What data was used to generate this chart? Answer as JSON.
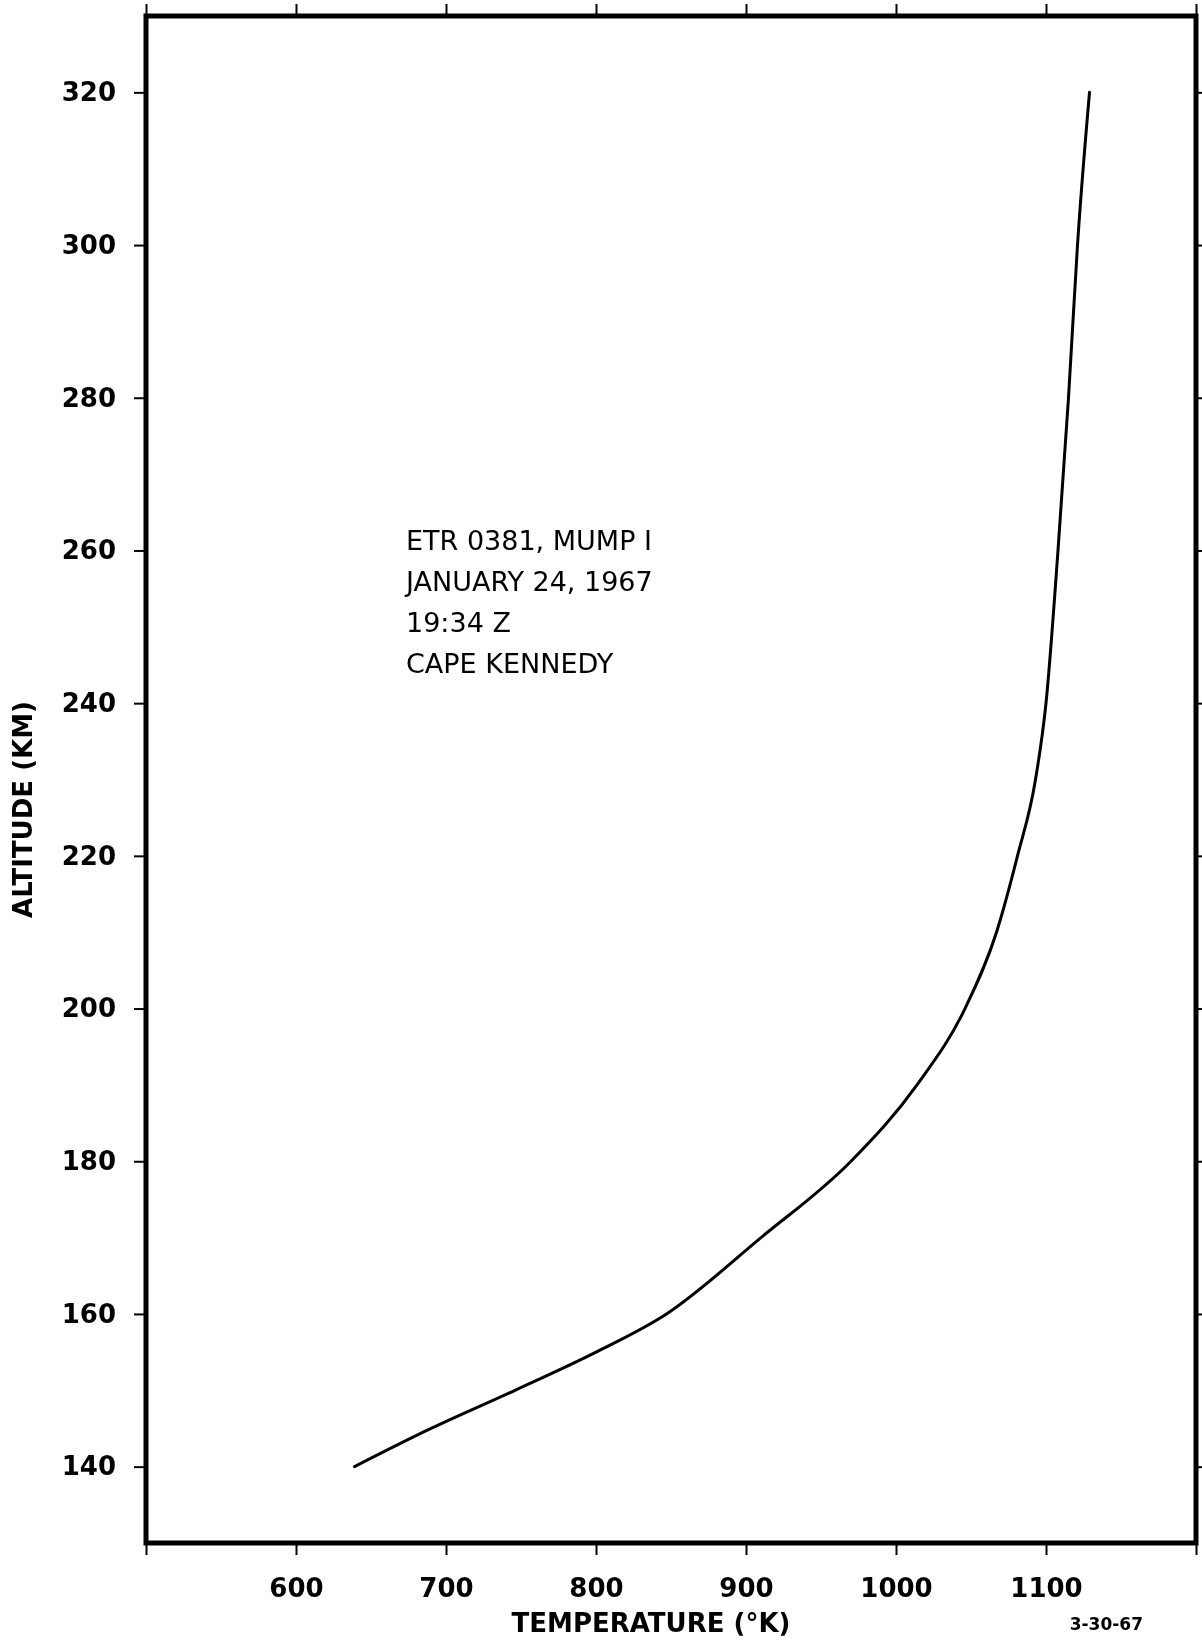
{
  "chart_data": {
    "type": "line",
    "xlabel": "TEMPERATURE (°K)",
    "ylabel": "ALTITUDE (KM)",
    "annotations": [
      "ETR 0381, MUMP I",
      "JANUARY 24, 1967",
      "19:34 Z",
      "CAPE KENNEDY",
      "3-30-67"
    ],
    "xlim": [
      500,
      1200
    ],
    "xticks": [
      {
        "value": 500,
        "label": null
      },
      600,
      700,
      800,
      900,
      1000,
      1100,
      {
        "value": 1200,
        "label": null
      }
    ],
    "ylim": [
      130,
      330
    ],
    "yticks": [
      140,
      160,
      180,
      200,
      220,
      240,
      260,
      280,
      300,
      320
    ],
    "grid": false,
    "marker": "none",
    "line_style": "solid",
    "series": [
      {
        "color": "#000000",
        "x": [
          639,
          690,
          746,
          800,
          847,
          910,
          970,
          1014,
          1046,
          1067,
          1081,
          1093,
          1100,
          1108,
          1115,
          1121,
          1129
        ],
        "values": [
          140,
          145,
          150,
          155,
          160,
          170,
          180,
          190,
          200,
          210,
          220,
          230,
          240,
          260,
          280,
          300,
          320
        ]
      }
    ]
  }
}
